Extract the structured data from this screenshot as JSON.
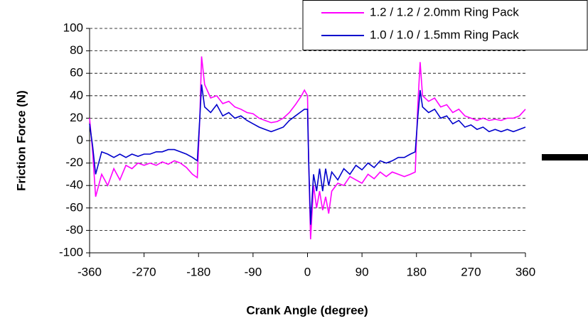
{
  "chart_data": {
    "type": "line",
    "xlabel": "Crank Angle (degree)",
    "ylabel": "Friction Force (N)",
    "x": [
      -360,
      -355,
      -350,
      -340,
      -330,
      -320,
      -310,
      -300,
      -290,
      -280,
      -270,
      -260,
      -250,
      -240,
      -230,
      -220,
      -210,
      -200,
      -190,
      -182,
      -178,
      -175,
      -170,
      -160,
      -150,
      -140,
      -130,
      -120,
      -110,
      -100,
      -90,
      -80,
      -70,
      -60,
      -50,
      -40,
      -30,
      -20,
      -10,
      -5,
      0,
      2,
      5,
      10,
      15,
      20,
      25,
      30,
      35,
      40,
      50,
      60,
      70,
      80,
      90,
      100,
      110,
      120,
      130,
      140,
      150,
      160,
      170,
      178,
      182,
      186,
      190,
      200,
      210,
      220,
      230,
      240,
      250,
      260,
      270,
      280,
      290,
      300,
      310,
      320,
      330,
      340,
      350,
      360
    ],
    "series": [
      {
        "name": "1.2 / 1.2 / 2.0mm Ring Pack",
        "color": "#ff00ff",
        "values": [
          20,
          -10,
          -50,
          -30,
          -40,
          -25,
          -35,
          -22,
          -25,
          -20,
          -22,
          -20,
          -22,
          -19,
          -21,
          -18,
          -20,
          -24,
          -30,
          -33,
          20,
          75,
          50,
          38,
          40,
          33,
          35,
          30,
          28,
          25,
          24,
          20,
          18,
          16,
          17,
          20,
          25,
          32,
          40,
          45,
          40,
          -20,
          -88,
          -40,
          -60,
          -45,
          -62,
          -50,
          -65,
          -45,
          -38,
          -40,
          -32,
          -35,
          -38,
          -30,
          -34,
          -28,
          -32,
          -28,
          -30,
          -32,
          -30,
          -28,
          30,
          70,
          40,
          35,
          38,
          30,
          32,
          25,
          28,
          22,
          20,
          18,
          20,
          18,
          19,
          18,
          20,
          20,
          22,
          28
        ]
      },
      {
        "name": "1.0 / 1.0 / 1.5mm Ring Pack",
        "color": "#0000cc",
        "values": [
          15,
          -5,
          -30,
          -10,
          -12,
          -15,
          -12,
          -15,
          -12,
          -14,
          -12,
          -12,
          -10,
          -10,
          -8,
          -8,
          -10,
          -12,
          -15,
          -18,
          20,
          50,
          30,
          25,
          32,
          22,
          25,
          20,
          22,
          18,
          15,
          12,
          10,
          8,
          10,
          12,
          18,
          22,
          26,
          28,
          28,
          -20,
          -75,
          -30,
          -45,
          -25,
          -45,
          -25,
          -40,
          -28,
          -35,
          -25,
          -30,
          -22,
          -26,
          -20,
          -24,
          -18,
          -20,
          -18,
          -15,
          -15,
          -12,
          -10,
          20,
          45,
          30,
          25,
          28,
          20,
          22,
          15,
          18,
          12,
          14,
          10,
          12,
          8,
          10,
          8,
          10,
          8,
          10,
          12
        ]
      }
    ],
    "xlim": [
      -360,
      360
    ],
    "xticks": [
      -360,
      -270,
      -180,
      -90,
      0,
      90,
      180,
      270,
      360
    ],
    "ylim": [
      -100,
      100
    ],
    "yticks": [
      -100,
      -80,
      -60,
      -40,
      -20,
      0,
      20,
      40,
      60,
      80,
      100
    ],
    "grid": true,
    "legend": "top-right"
  }
}
